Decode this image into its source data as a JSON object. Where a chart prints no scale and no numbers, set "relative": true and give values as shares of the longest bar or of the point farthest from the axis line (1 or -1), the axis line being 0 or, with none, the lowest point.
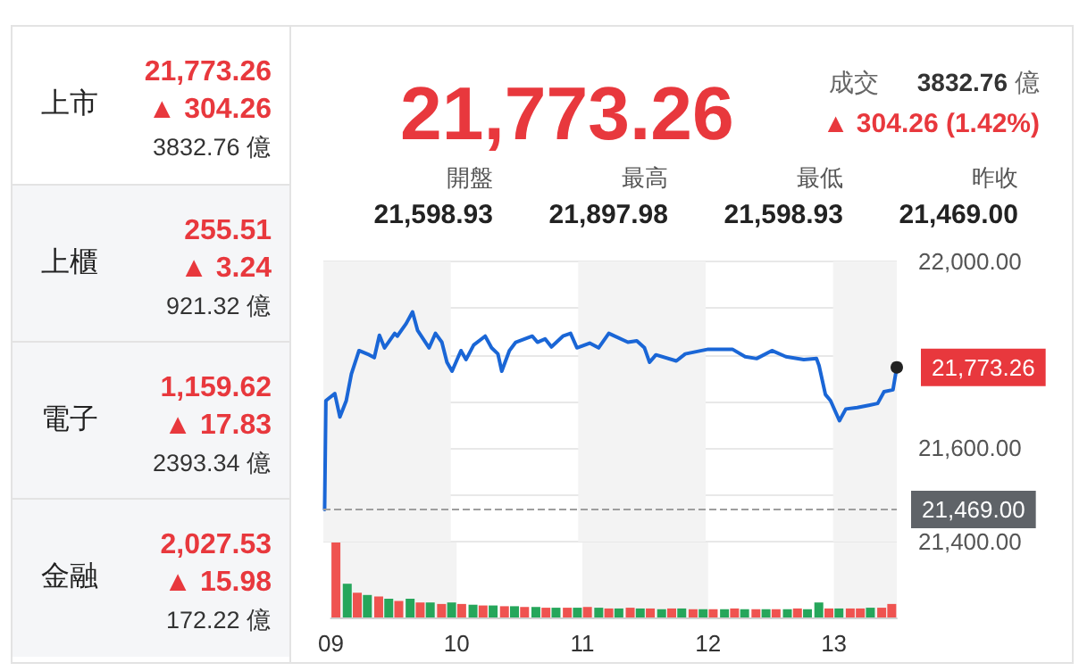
{
  "chart_data": [
    {
      "type": "other",
      "annotations": [
        "上市",
        "21,773.26",
        "▲ 304.26",
        "3832.76 億",
        "上櫃",
        "255.51",
        "▲ 3.24",
        "921.32 億",
        "電子",
        "1,159.62",
        "▲ 17.83",
        "2393.34 億",
        "金融",
        "2,027.53",
        "▲ 15.98",
        "172.22 億"
      ]
    },
    {
      "type": "other",
      "annotations": [
        "21,773.26",
        "成交",
        "3832.76",
        "億",
        "▲ 304.26 (1.42%)",
        "開盤",
        "21,598.93",
        "最高",
        "21,897.98",
        "最低",
        "21,598.93",
        "昨收",
        "21,469.00"
      ]
    },
    {
      "type": "line",
      "tick_labels": "y",
      "grid": "y",
      "marker": "none",
      "line_style": "solid",
      "xlim": [
        9,
        13.5
      ],
      "ylim": [
        21400,
        22000
      ],
      "yticks": [
        {
          "value": 21400,
          "label": "21,400.00"
        },
        {
          "value": 21600,
          "label": "21,600.00"
        },
        {
          "value": 21800,
          "label": null
        },
        {
          "value": 22000,
          "label": "22,000.00"
        }
      ],
      "x": [
        9.01,
        9.02,
        9.09,
        9.13,
        9.18,
        9.22,
        9.28,
        9.36,
        9.4,
        9.44,
        9.48,
        9.56,
        9.58,
        9.65,
        9.7,
        9.74,
        9.83,
        9.88,
        9.93,
        9.97,
        10.01,
        10.08,
        10.12,
        10.18,
        10.27,
        10.32,
        10.37,
        10.4,
        10.46,
        10.51,
        10.64,
        10.68,
        10.74,
        10.79,
        10.88,
        10.94,
        10.99,
        11.09,
        11.16,
        11.24,
        11.39,
        11.46,
        11.52,
        11.56,
        11.61,
        11.77,
        11.84,
        12.02,
        12.21,
        12.31,
        12.4,
        12.52,
        12.63,
        12.77,
        12.87,
        12.89,
        12.94,
        12.98,
        13.05,
        13.1,
        13.19,
        13.28,
        13.35,
        13.4,
        13.47,
        13.5
      ],
      "series": [
        {
          "color": "#1a66d6",
          "values": [
            21469,
            21702,
            21717,
            21667,
            21702,
            21759,
            21809,
            21800,
            21794,
            21842,
            21815,
            21846,
            21840,
            21867,
            21892,
            21852,
            21815,
            21846,
            21827,
            21784,
            21765,
            21809,
            21790,
            21821,
            21840,
            21815,
            21802,
            21765,
            21809,
            21827,
            21840,
            21827,
            21834,
            21817,
            21840,
            21846,
            21815,
            21825,
            21815,
            21846,
            21827,
            21830,
            21815,
            21784,
            21800,
            21787,
            21802,
            21812,
            21812,
            21796,
            21792,
            21809,
            21796,
            21790,
            21792,
            21777,
            21715,
            21702,
            21659,
            21684,
            21687,
            21692,
            21696,
            21721,
            21725,
            21773.26
          ]
        }
      ],
      "ref_lines": [
        {
          "axis": "y",
          "value": 21469,
          "label": "21,469.00",
          "color": "#9e9e9e",
          "line_style": "dashed"
        }
      ],
      "annotations": [
        {
          "text": "21,773.26",
          "x": 13.5,
          "y": 21773.26
        }
      ],
      "bands": [
        {
          "axis": "x",
          "from": 9,
          "to": 10,
          "color": "#f3f3f3"
        },
        {
          "axis": "x",
          "from": 11,
          "to": 12,
          "color": "#f3f3f3"
        },
        {
          "axis": "x",
          "from": 13,
          "to": 13.5,
          "color": "#f3f3f3"
        }
      ]
    },
    {
      "type": "bar",
      "relative": true,
      "tick_labels": "x",
      "xlim": [
        9,
        13.5
      ],
      "xticks": [
        {
          "value": 9,
          "label": "09"
        },
        {
          "value": 10,
          "label": "10"
        },
        {
          "value": 11,
          "label": "11"
        },
        {
          "value": 12,
          "label": "12"
        },
        {
          "value": 13,
          "label": "13"
        }
      ],
      "x": [
        9.04,
        9.13,
        9.21,
        9.29,
        9.38,
        9.46,
        9.54,
        9.63,
        9.71,
        9.79,
        9.88,
        9.96,
        10.04,
        10.13,
        10.21,
        10.29,
        10.38,
        10.46,
        10.54,
        10.63,
        10.71,
        10.79,
        10.88,
        10.96,
        11.04,
        11.13,
        11.21,
        11.29,
        11.38,
        11.46,
        11.54,
        11.63,
        11.71,
        11.79,
        11.88,
        11.96,
        12.04,
        12.13,
        12.21,
        12.29,
        12.38,
        12.46,
        12.54,
        12.63,
        12.71,
        12.79,
        12.88,
        12.96,
        13.04,
        13.13,
        13.21,
        13.29,
        13.38,
        13.46
      ],
      "values": [
        1.0,
        0.45,
        0.33,
        0.3,
        0.28,
        0.25,
        0.22,
        0.25,
        0.2,
        0.2,
        0.18,
        0.2,
        0.18,
        0.17,
        0.16,
        0.16,
        0.15,
        0.15,
        0.14,
        0.14,
        0.13,
        0.13,
        0.13,
        0.13,
        0.14,
        0.13,
        0.12,
        0.12,
        0.13,
        0.12,
        0.12,
        0.11,
        0.12,
        0.12,
        0.11,
        0.11,
        0.11,
        0.11,
        0.12,
        0.11,
        0.11,
        0.11,
        0.11,
        0.11,
        0.12,
        0.11,
        0.2,
        0.12,
        0.12,
        0.12,
        0.12,
        0.13,
        0.13,
        0.18
      ],
      "colors": [
        "#ef5350",
        "#26a65b",
        "#ef5350",
        "#26a65b",
        "#ef5350",
        "#26a65b",
        "#ef5350",
        "#26a65b",
        "#ef5350",
        "#26a65b",
        "#ef5350",
        "#26a65b",
        "#ef5350",
        "#26a65b",
        "#ef5350",
        "#26a65b",
        "#ef5350",
        "#26a65b",
        "#ef5350",
        "#26a65b",
        "#ef5350",
        "#26a65b",
        "#ef5350",
        "#26a65b",
        "#ef5350",
        "#26a65b",
        "#ef5350",
        "#26a65b",
        "#ef5350",
        "#26a65b",
        "#ef5350",
        "#26a65b",
        "#ef5350",
        "#26a65b",
        "#ef5350",
        "#26a65b",
        "#ef5350",
        "#26a65b",
        "#ef5350",
        "#26a65b",
        "#ef5350",
        "#26a65b",
        "#ef5350",
        "#26a65b",
        "#ef5350",
        "#26a65b",
        "#26a65b",
        "#ef5350",
        "#26a65b",
        "#ef5350",
        "#ef5350",
        "#26a65b",
        "#ef5350",
        "#ef5350"
      ],
      "bands": [
        {
          "axis": "x",
          "from": 9,
          "to": 10,
          "color": "#f3f3f3"
        },
        {
          "axis": "x",
          "from": 11,
          "to": 12,
          "color": "#f3f3f3"
        },
        {
          "axis": "x",
          "from": 13,
          "to": 13.5,
          "color": "#f3f3f3"
        }
      ]
    }
  ]
}
